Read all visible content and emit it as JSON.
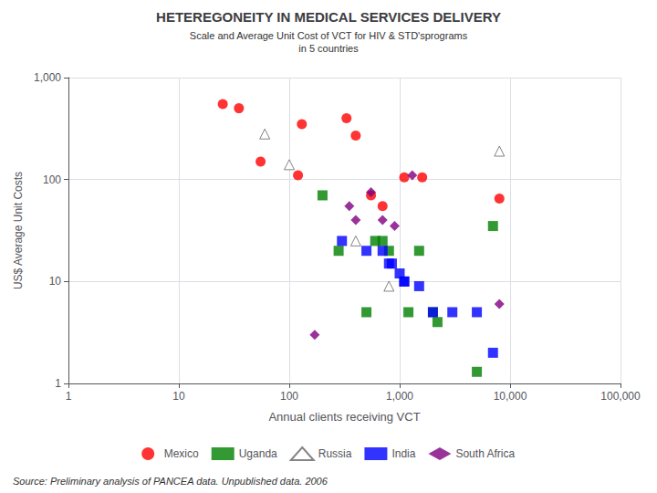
{
  "chart_data": {
    "type": "scatter",
    "title": "HETEREGONEITY IN MEDICAL SERVICES DELIVERY",
    "subtitle": "Scale and Average Unit Cost of VCT for HIV & STD'sprograms\nin 5 countries",
    "xlabel": "Annual clients receiving VCT",
    "ylabel": "US$ Average Unit Costs",
    "source": "Source: Preliminary analysis of PANCEA data. Unpublished data. 2006",
    "log": true,
    "grid": true,
    "legend": "bottom",
    "xlim": [
      1,
      100000
    ],
    "ylim": [
      1,
      1000
    ],
    "xticks": [
      1,
      10,
      100,
      {
        "value": 1000,
        "label": "1,000"
      },
      {
        "value": 10000,
        "label": "10,000"
      },
      {
        "value": 100000,
        "label": "100,000"
      }
    ],
    "yticks": [
      1,
      10,
      100,
      {
        "value": 1000,
        "label": "1,000"
      }
    ],
    "series": [
      {
        "name": "Mexico",
        "color": "#ff0000",
        "marker": "circle",
        "x": [
          25,
          35,
          55,
          120,
          130,
          330,
          400,
          550,
          700,
          1100,
          1600,
          8000
        ],
        "values": [
          550,
          500,
          150,
          110,
          350,
          400,
          270,
          70,
          55,
          105,
          105,
          65
        ]
      },
      {
        "name": "Uganda",
        "color": "#008000",
        "marker": "square",
        "x": [
          200,
          280,
          500,
          600,
          700,
          800,
          1200,
          1500,
          2000,
          2200,
          5000,
          7000
        ],
        "values": [
          70,
          20,
          5,
          25,
          25,
          20,
          5,
          20,
          5,
          4,
          1.3,
          35
        ]
      },
      {
        "name": "Russia",
        "color": "#ffffff",
        "marker": "triangle",
        "x": [
          60,
          100,
          8000,
          400,
          800
        ],
        "values": [
          280,
          140,
          190,
          25,
          9
        ]
      },
      {
        "name": "India",
        "color": "#0000ff",
        "marker": "square",
        "x": [
          300,
          500,
          700,
          800,
          850,
          1000,
          1100,
          1100,
          1500,
          2000,
          3000,
          5000,
          7000
        ],
        "values": [
          25,
          20,
          20,
          15,
          15,
          12,
          10,
          10,
          9,
          5,
          5,
          5,
          2
        ]
      },
      {
        "name": "South Africa",
        "color": "#800080",
        "marker": "diamond",
        "x": [
          170,
          350,
          400,
          550,
          700,
          900,
          1300,
          8000
        ],
        "values": [
          3,
          55,
          40,
          75,
          40,
          35,
          110,
          6
        ]
      }
    ]
  }
}
